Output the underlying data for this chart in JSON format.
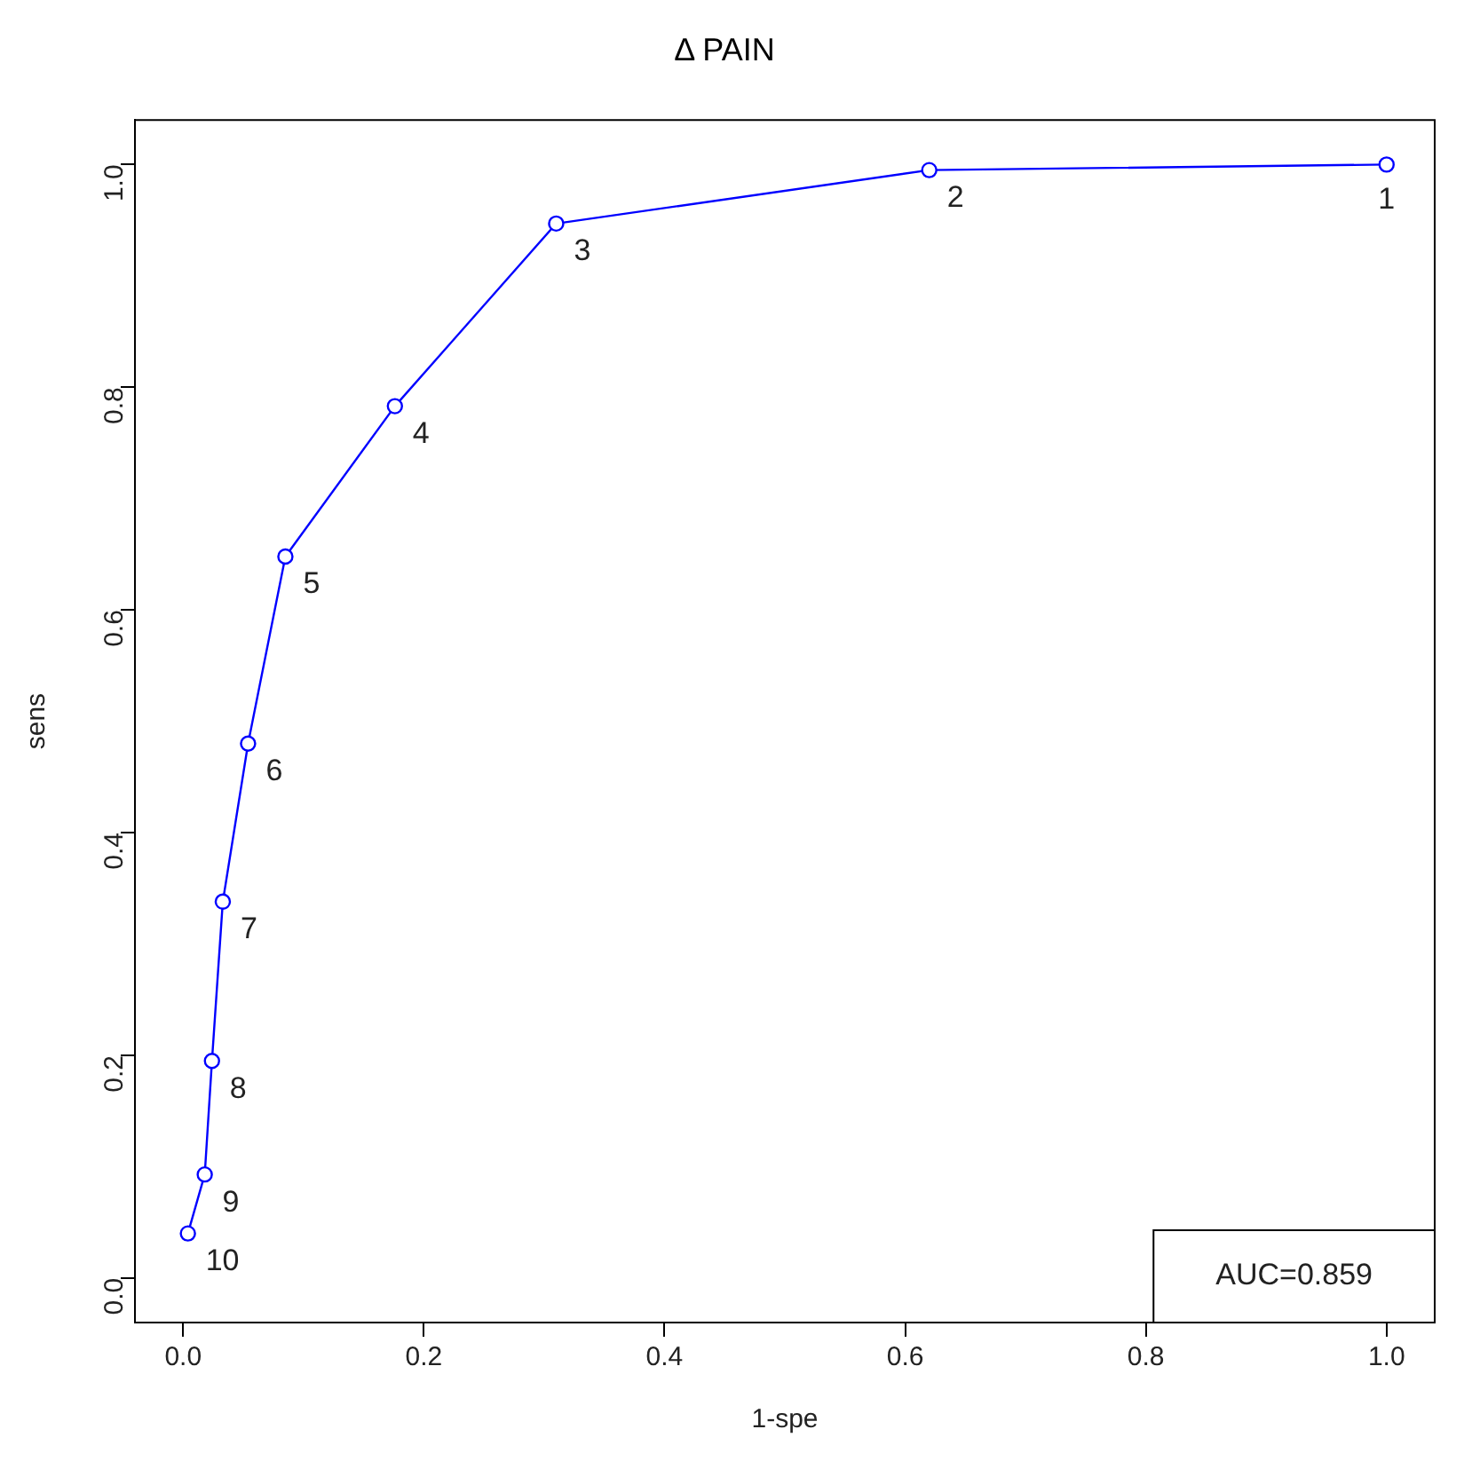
{
  "chart_data": {
    "type": "line",
    "title": "Δ PAIN",
    "xlabel": "1-spe",
    "ylabel": "sens",
    "x": [
      1.0,
      0.62,
      0.31,
      0.176,
      0.085,
      0.054,
      0.033,
      0.024,
      0.018,
      0.004
    ],
    "series": [
      {
        "color": "#0000ff",
        "values": [
          1.0,
          0.995,
          0.947,
          0.783,
          0.648,
          0.48,
          0.338,
          0.195,
          0.093,
          0.04
        ]
      }
    ],
    "xlim": [
      -0.04,
      1.04
    ],
    "ylim": [
      -0.04,
      1.04
    ],
    "xticks": [
      {
        "value": 0,
        "label": "0.0"
      },
      {
        "value": 0.2,
        "label": "0.2"
      },
      {
        "value": 0.4,
        "label": "0.4"
      },
      {
        "value": 0.6,
        "label": "0.6"
      },
      {
        "value": 0.8,
        "label": "0.8"
      },
      {
        "value": 1,
        "label": "1.0"
      }
    ],
    "yticks": [
      {
        "value": 0,
        "label": "0.0"
      },
      {
        "value": 0.2,
        "label": "0.2"
      },
      {
        "value": 0.4,
        "label": "0.4"
      },
      {
        "value": 0.6,
        "label": "0.6"
      },
      {
        "value": 0.8,
        "label": "0.8"
      },
      {
        "value": 1,
        "label": "1.0"
      }
    ],
    "marker": "circle",
    "line_style": "solid",
    "grid": false,
    "legend": false,
    "annotations": [
      {
        "text": "1",
        "x": 1.0,
        "y": 1.0
      },
      {
        "text": "2",
        "x": 0.62,
        "y": 0.995
      },
      {
        "text": "3",
        "x": 0.31,
        "y": 0.947
      },
      {
        "text": "4",
        "x": 0.176,
        "y": 0.783
      },
      {
        "text": "5",
        "x": 0.085,
        "y": 0.648
      },
      {
        "text": "6",
        "x": 0.054,
        "y": 0.48
      },
      {
        "text": "7",
        "x": 0.033,
        "y": 0.338
      },
      {
        "text": "8",
        "x": 0.024,
        "y": 0.195
      },
      {
        "text": "9",
        "x": 0.018,
        "y": 0.093
      },
      {
        "text": "10",
        "x": 0.004,
        "y": 0.04
      },
      "AUC=0.859"
    ]
  }
}
